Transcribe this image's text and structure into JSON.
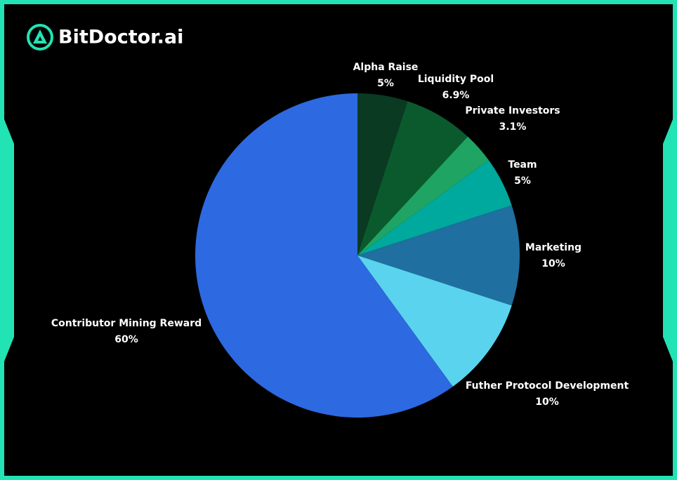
{
  "brand": "BitDoctor.ai",
  "chart_data": {
    "type": "pie",
    "categories": [
      "Alpha Raise",
      "Liquidity Pool",
      "Private Investors",
      "Team",
      "Marketing",
      "Futher Protocol Development",
      "Contributor Mining Reward"
    ],
    "values": [
      5,
      6.9,
      3.1,
      5,
      10,
      10,
      60
    ],
    "value_labels": [
      "5%",
      "6.9%",
      "3.1%",
      "5%",
      "10%",
      "10%",
      "60%"
    ],
    "colors": [
      "#0a3a22",
      "#0b5a2e",
      "#1fa463",
      "#00a99d",
      "#1f6fa0",
      "#5ad4ee",
      "#2d69e0"
    ]
  }
}
